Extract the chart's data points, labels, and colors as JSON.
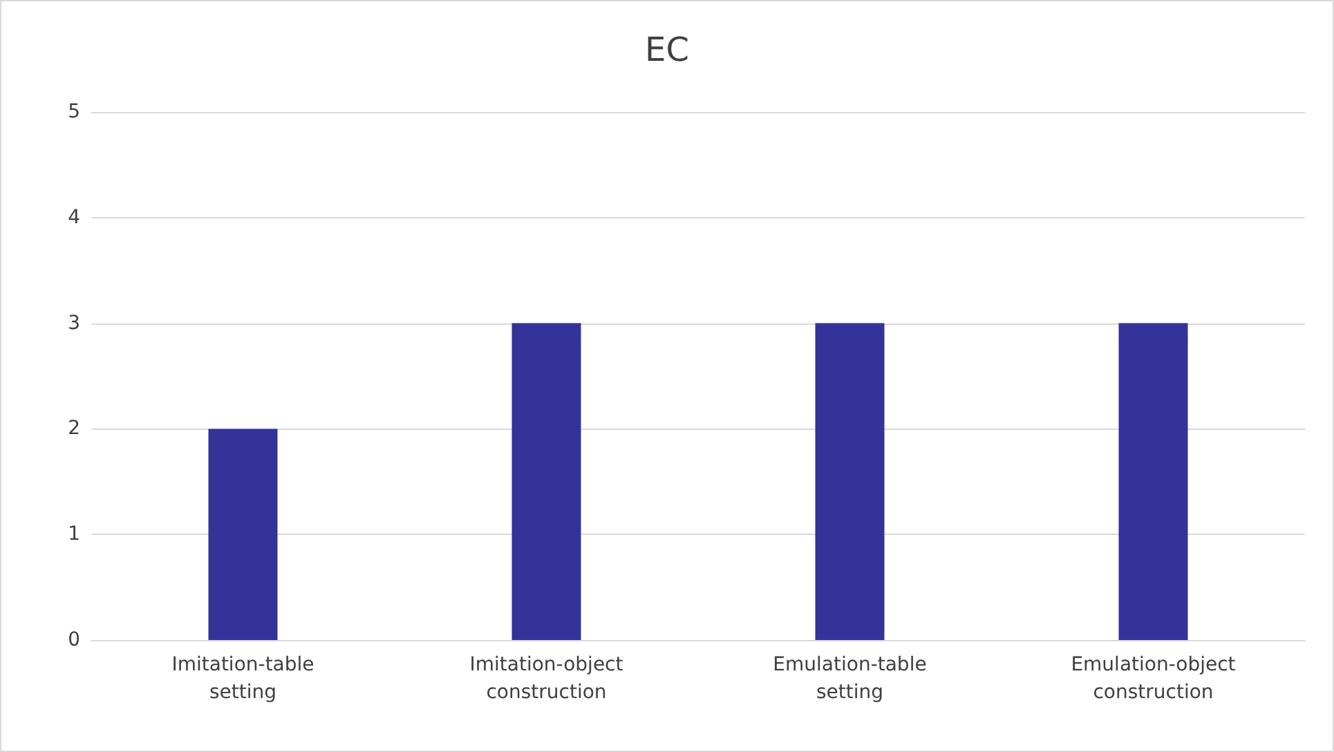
{
  "chart_data": {
    "type": "bar",
    "title": "EC",
    "categories": [
      "Imitation-table setting",
      "Imitation-object construction",
      "Emulation-table setting",
      "Emulation-object construction"
    ],
    "values": [
      2,
      3,
      3,
      3
    ],
    "color": "#333399",
    "ylim": [
      0,
      5
    ],
    "yticks": [
      0,
      1,
      2,
      3,
      4,
      5
    ],
    "grid": "y"
  }
}
